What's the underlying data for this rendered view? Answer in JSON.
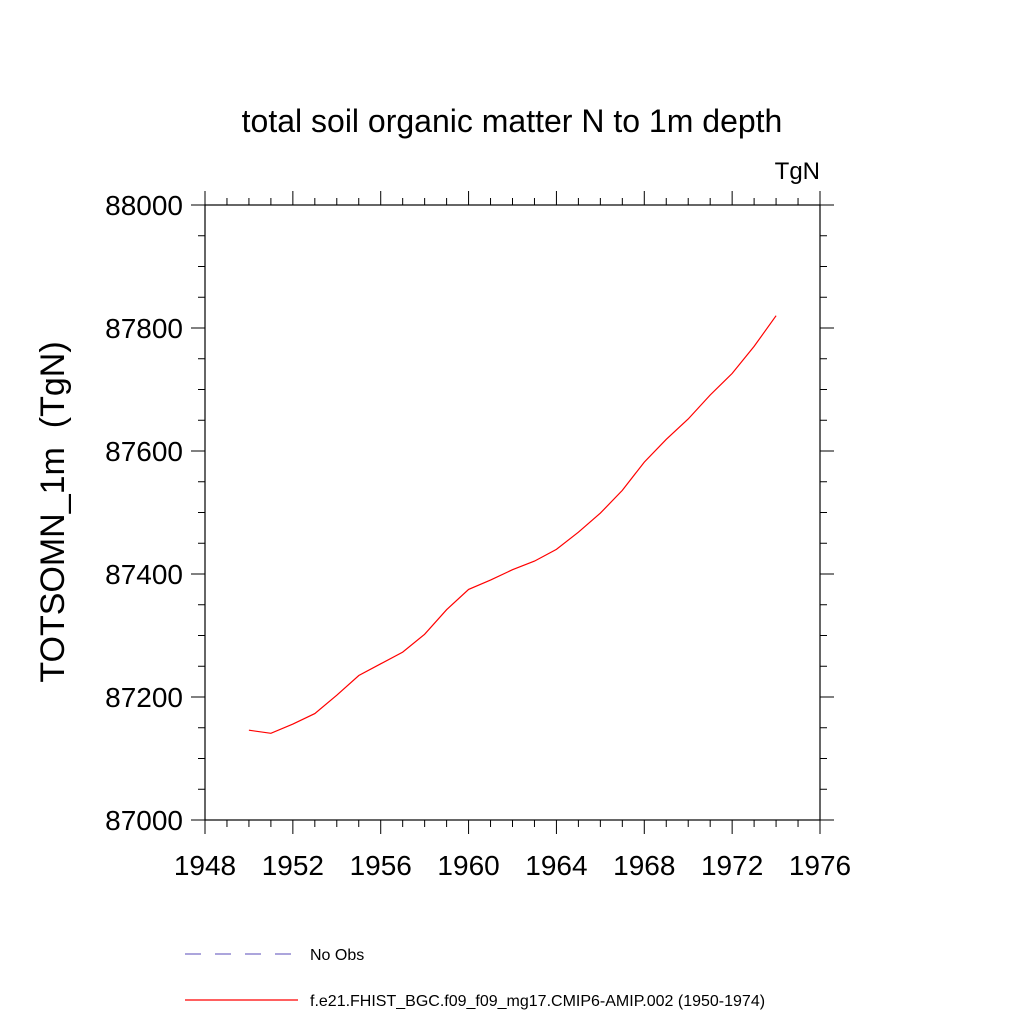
{
  "chart_data": {
    "type": "line",
    "title": "total soil organic matter N to 1m depth",
    "units_label": "TgN",
    "ylabel": "TOTSOMN_1m  (TgN)",
    "xlabel": "",
    "xlim": [
      1948,
      1976
    ],
    "ylim": [
      87000,
      88000
    ],
    "x_ticks": [
      1948,
      1952,
      1956,
      1960,
      1964,
      1968,
      1972,
      1976
    ],
    "x_tick_labels": [
      "1948",
      "1952",
      "1956",
      "1960",
      "1964",
      "1968",
      "1972",
      "1976"
    ],
    "y_ticks": [
      87000,
      87200,
      87400,
      87600,
      87800,
      88000
    ],
    "y_tick_labels": [
      "87000",
      "87200",
      "87400",
      "87600",
      "87800",
      "88000"
    ],
    "grid": false,
    "legend_placement": "bottom",
    "series": [
      {
        "name": "No Obs",
        "color": "#7a6fc8",
        "dash": "dashed",
        "x": [],
        "y": []
      },
      {
        "name": "f.e21.FHIST_BGC.f09_f09_mg17.CMIP6-AMIP.002 (1950-1974)",
        "color": "#ff0000",
        "dash": "solid",
        "x": [
          1950,
          1951,
          1952,
          1953,
          1954,
          1955,
          1956,
          1957,
          1958,
          1959,
          1960,
          1961,
          1962,
          1963,
          1964,
          1965,
          1966,
          1967,
          1968,
          1969,
          1970,
          1971,
          1972,
          1973,
          1974
        ],
        "y": [
          87146,
          87141,
          87156,
          87173,
          87203,
          87235,
          87254,
          87273,
          87302,
          87342,
          87375,
          87390,
          87407,
          87421,
          87440,
          87468,
          87499,
          87536,
          87582,
          87619,
          87652,
          87691,
          87726,
          87770,
          87820
        ]
      }
    ]
  }
}
